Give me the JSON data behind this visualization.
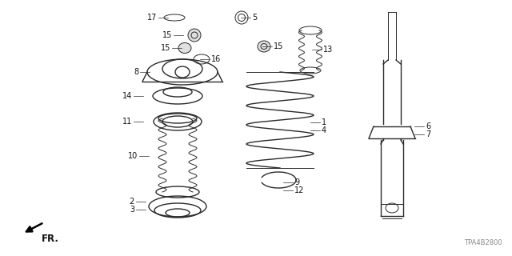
{
  "bg_color": "#ffffff",
  "line_color": "#2a2a2a",
  "part_number_code": "TPA4B2800",
  "fr_label": "FR.",
  "font_size": 7.0,
  "fig_w": 6.4,
  "fig_h": 3.2,
  "dpi": 100
}
